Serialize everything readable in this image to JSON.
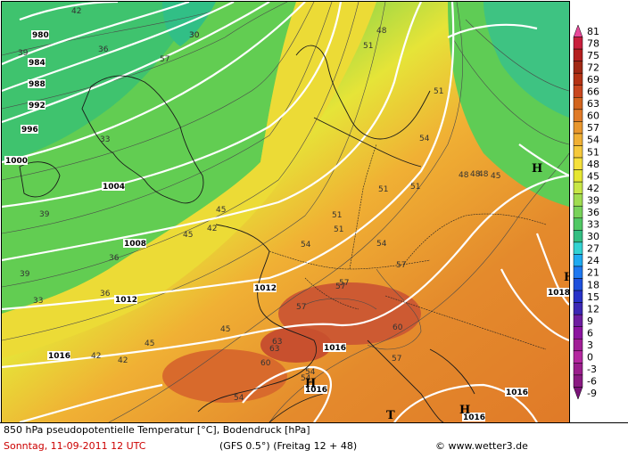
{
  "title_line": "850 hPa pseudopotentielle Temperatur [°C], Bodendruck [hPa]",
  "date_line": "Sonntag, 11-09-2011  12 UTC",
  "model_info": "(GFS 0.5°)  (Freitag 12 + 48)",
  "credit": "© www.wetter3.de",
  "colors": {
    "cold": "#7fd24a",
    "cool": "#4ec86a",
    "mild": "#f2e23a",
    "warm": "#f0a93a",
    "hot": "#e07a2a",
    "very_hot": "#c0563a",
    "isobar": "#ffffff",
    "isotherm": "#555555"
  },
  "legend": {
    "values": [
      "81",
      "78",
      "75",
      "72",
      "69",
      "66",
      "63",
      "60",
      "57",
      "54",
      "51",
      "48",
      "45",
      "42",
      "39",
      "36",
      "33",
      "30",
      "27",
      "24",
      "21",
      "18",
      "15",
      "12",
      "9",
      "6",
      "3",
      "0",
      "-3",
      "-6",
      "-9"
    ],
    "colors": [
      "#e8489a",
      "#c81e3c",
      "#b41e1e",
      "#a02814",
      "#b43214",
      "#c8461e",
      "#d2641e",
      "#e07a28",
      "#e8962d",
      "#f0af34",
      "#f5c83c",
      "#f5e03c",
      "#e6e632",
      "#c8e646",
      "#a0dc50",
      "#78d25a",
      "#50c864",
      "#32be82",
      "#32d2d2",
      "#1eaaf0",
      "#1e78f0",
      "#1e50dc",
      "#2832c8",
      "#3c28b4",
      "#6e1ea0",
      "#8c14a0",
      "#a01e96",
      "#b428a0",
      "#9a1e8c",
      "#8a1a82",
      "#7a1478"
    ]
  },
  "pressure_labels": [
    "980",
    "984",
    "988",
    "992",
    "996",
    "1000",
    "1004",
    "1008",
    "1012",
    "1016",
    "1012",
    "1016",
    "1016",
    "1016",
    "1016",
    "1018"
  ],
  "temp_labels": [
    "42",
    "39",
    "36",
    "33",
    "30",
    "57",
    "54",
    "51",
    "48",
    "45",
    "63",
    "60",
    "57",
    "54",
    "51",
    "45",
    "42",
    "39",
    "36",
    "33",
    "30",
    "57",
    "54",
    "51",
    "48",
    "63",
    "60",
    "54",
    "51",
    "48",
    "57",
    "54",
    "57",
    "51",
    "45",
    "57",
    "54",
    "51",
    "48",
    "42",
    "45",
    "36",
    "39",
    "45",
    "42"
  ],
  "highs": [
    "H",
    "H",
    "H",
    "H"
  ],
  "lows": [
    "T"
  ]
}
